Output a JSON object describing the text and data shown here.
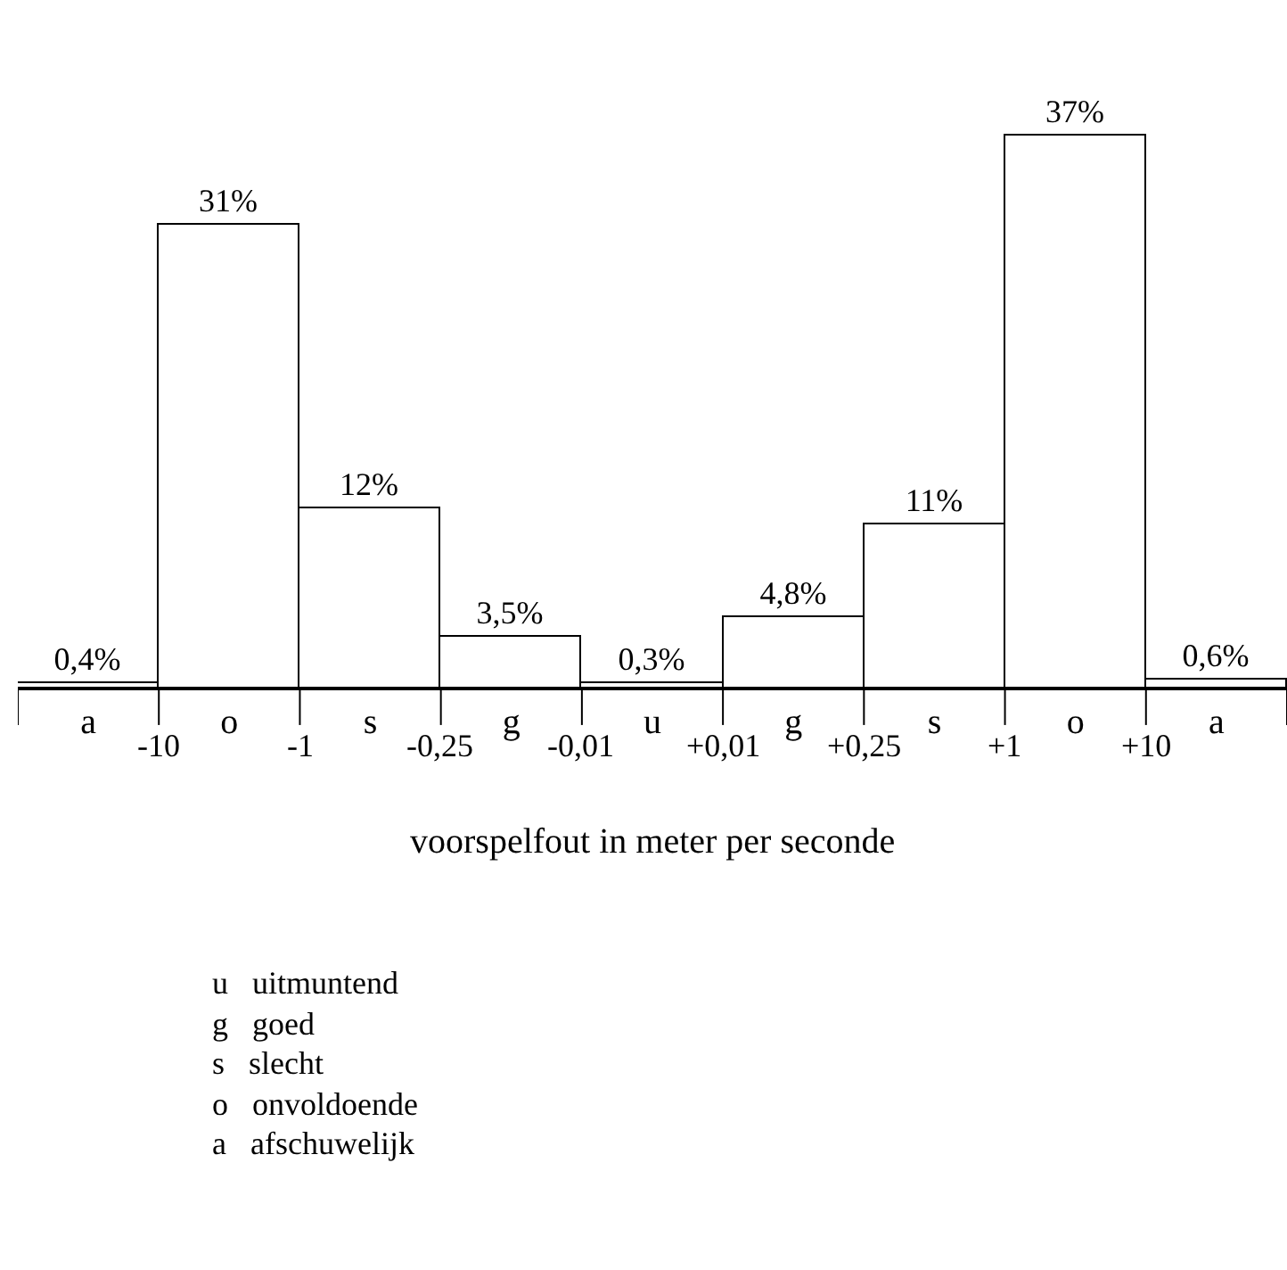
{
  "chart_data": {
    "type": "bar",
    "xlabel": "voorspelfout in meter per seconde",
    "categories": [
      "a",
      "o",
      "s",
      "g",
      "u",
      "g",
      "s",
      "o",
      "a"
    ],
    "values": [
      0.4,
      31,
      12,
      3.5,
      0.3,
      4.8,
      11,
      37,
      0.6
    ],
    "value_labels": [
      "0,4%",
      "31%",
      "12%",
      "3,5%",
      "0,3%",
      "4,8%",
      "11%",
      "37%",
      "0,6%"
    ],
    "color": "#ffffff",
    "annotations": [
      "-10",
      "-1",
      "-0,25",
      "-0,01",
      "+0,01",
      "+0,25",
      "+1",
      "+10",
      "u   uitmuntend",
      "g   goed",
      "s   slecht",
      "o   onvoldoende",
      "a   afschuwelijk"
    ]
  }
}
